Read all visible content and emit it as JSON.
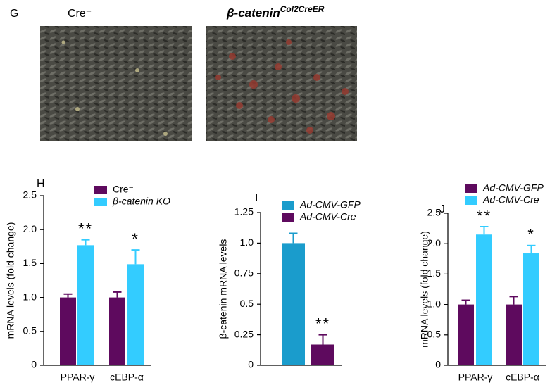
{
  "panel_g": {
    "letter": "G",
    "left_label": "Cre⁻",
    "right_label": {
      "main": "β-catenin",
      "superscript": "Col2CreER"
    }
  },
  "chart_data": [
    {
      "type": "bar",
      "panel": "H",
      "ylabel": "mRNA levels (fold change)",
      "categories": [
        "PPAR-γ",
        "cEBP-α"
      ],
      "series": [
        {
          "name": "Cre⁻",
          "color": "#5e0a5e",
          "values": [
            1.0,
            1.0
          ],
          "errors": [
            0.05,
            0.08
          ],
          "labels": [
            null,
            null
          ]
        },
        {
          "name": "β-catenin KO",
          "color": "#33ccff",
          "values": [
            1.77,
            1.49
          ],
          "errors": [
            0.08,
            0.21
          ],
          "labels": [
            "**",
            "*"
          ]
        }
      ],
      "ylim": [
        0,
        2.5
      ],
      "yticks": [
        0,
        0.5,
        {
          "value": 1,
          "label": "1.0"
        },
        1.5,
        {
          "value": 2,
          "label": "2.0"
        },
        2.5
      ]
    },
    {
      "type": "bar",
      "panel": "I",
      "ylabel": "β-catenin mRNA levels",
      "categories": [
        null
      ],
      "series": [
        {
          "name": "Ad-CMV-GFP",
          "color": "#1a9ccc",
          "values": [
            1.0
          ],
          "errors": [
            0.08
          ],
          "labels": [
            null
          ]
        },
        {
          "name": "Ad-CMV-Cre",
          "color": "#5e0a5e",
          "values": [
            0.17
          ],
          "errors": [
            0.08
          ],
          "labels": [
            "**"
          ]
        }
      ],
      "ylim": [
        0,
        1.25
      ],
      "yticks": [
        0,
        0.25,
        0.5,
        0.75,
        {
          "value": 1,
          "label": "1.0"
        },
        1.25
      ]
    },
    {
      "type": "bar",
      "panel": "J",
      "ylabel": "mRNA levels (fold change)",
      "categories": [
        "PPAR-γ",
        "cEBP-α"
      ],
      "series": [
        {
          "name": "Ad-CMV-GFP",
          "color": "#5e0a5e",
          "values": [
            1.0,
            1.0
          ],
          "errors": [
            0.07,
            0.13
          ],
          "labels": [
            null,
            null
          ]
        },
        {
          "name": "Ad-CMV-Cre",
          "color": "#33ccff",
          "values": [
            2.15,
            1.84
          ],
          "errors": [
            0.13,
            0.13
          ],
          "labels": [
            "**",
            "*"
          ]
        }
      ],
      "ylim": [
        0,
        2.5
      ],
      "yticks": [
        0,
        0.5,
        {
          "value": 1,
          "label": "1.0"
        },
        1.5,
        {
          "value": 2,
          "label": "2.0"
        },
        2.5
      ]
    }
  ]
}
